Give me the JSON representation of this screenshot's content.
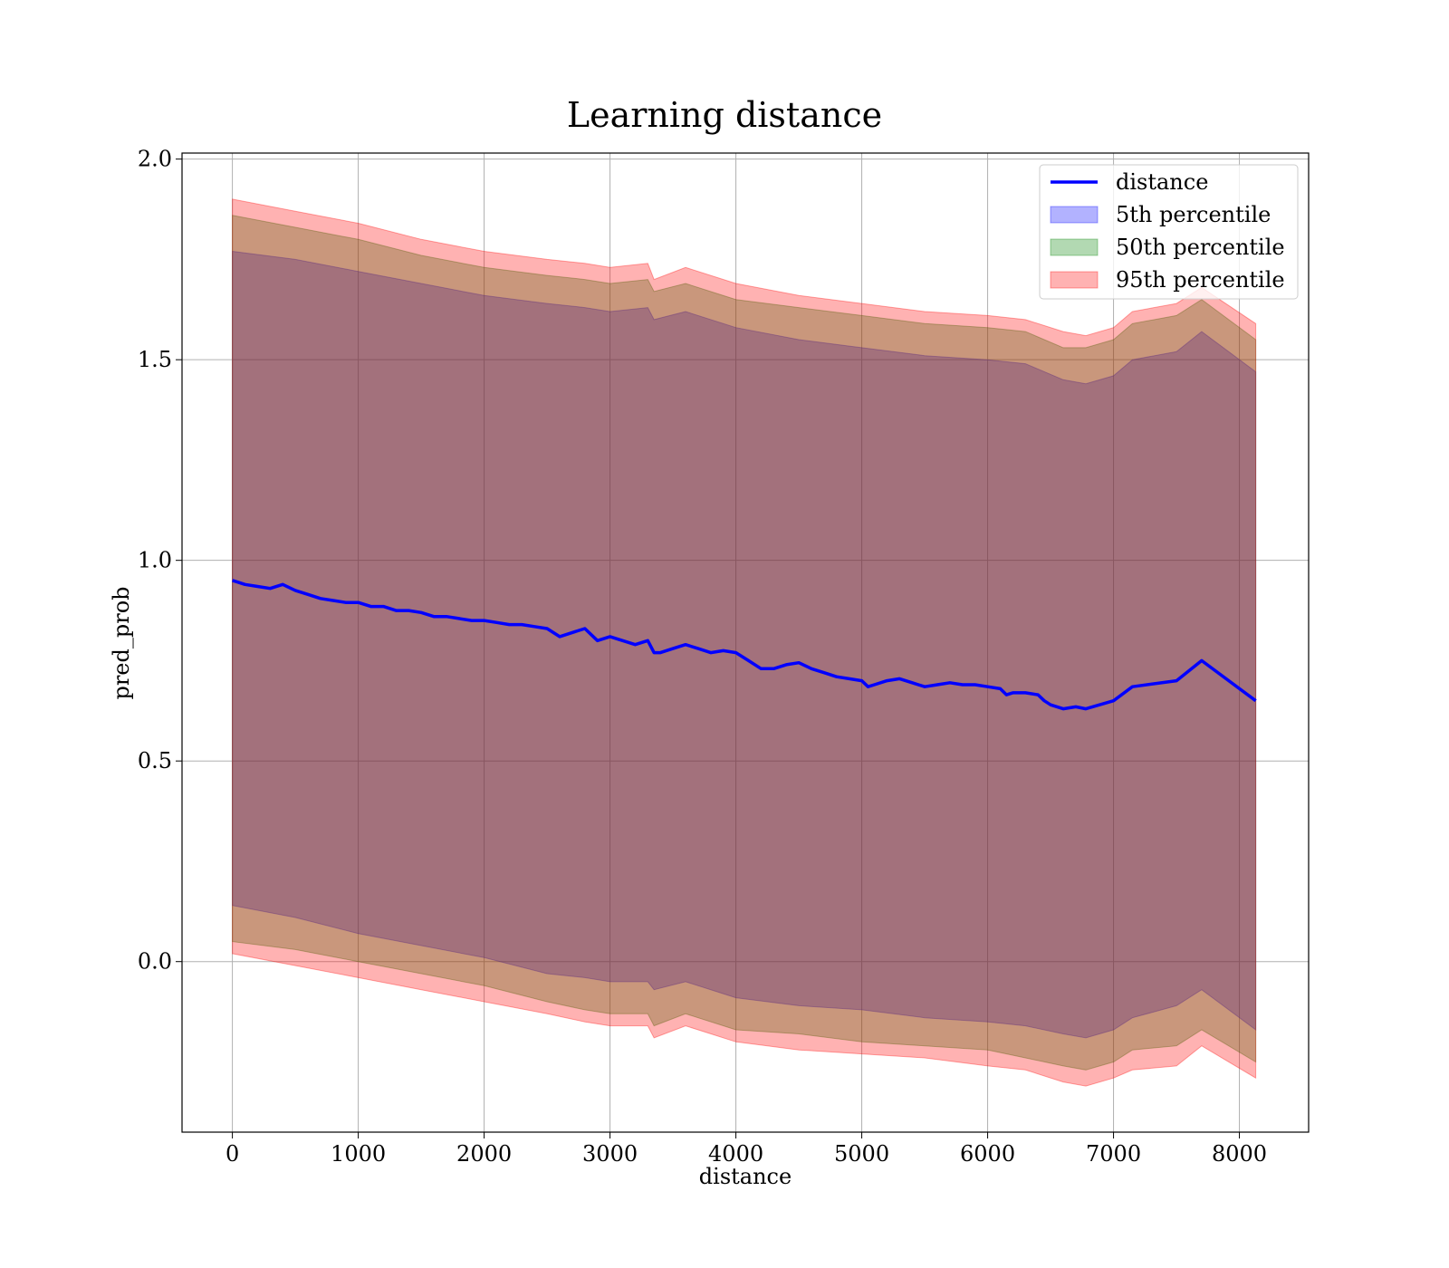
{
  "chart_data": {
    "type": "area",
    "title": "Learning distance",
    "xlabel": "distance",
    "ylabel": "pred_prob",
    "xlim": [
      -400,
      8550
    ],
    "ylim": [
      -0.425,
      2.015
    ],
    "x_ticks": [
      0,
      1000,
      2000,
      3000,
      4000,
      5000,
      6000,
      7000,
      8000
    ],
    "x_tick_labels": [
      "0",
      "1000",
      "2000",
      "3000",
      "4000",
      "5000",
      "6000",
      "7000",
      "8000"
    ],
    "y_ticks": [
      0.0,
      0.5,
      1.0,
      1.5,
      2.0
    ],
    "y_tick_labels": [
      "0.0",
      "0.5",
      "1.0",
      "1.5",
      "2.0"
    ],
    "grid": true,
    "legend_position": "top-right",
    "legend": [
      {
        "label": "distance",
        "kind": "line",
        "color": "#0000ff"
      },
      {
        "label": "5th percentile",
        "kind": "patch",
        "color": "#0000ff"
      },
      {
        "label": "50th percentile",
        "kind": "patch",
        "color": "#008000"
      },
      {
        "label": "95th percentile",
        "kind": "patch",
        "color": "#ff0000"
      }
    ],
    "series": [
      {
        "name": "distance",
        "color": "#0000ff",
        "x": [
          0,
          100,
          200,
          300,
          400,
          500,
          600,
          700,
          800,
          900,
          1000,
          1100,
          1200,
          1300,
          1400,
          1500,
          1600,
          1700,
          1800,
          1900,
          2000,
          2100,
          2200,
          2300,
          2400,
          2500,
          2600,
          2700,
          2800,
          2900,
          3000,
          3100,
          3200,
          3300,
          3350,
          3400,
          3500,
          3600,
          3700,
          3800,
          3900,
          4000,
          4100,
          4200,
          4300,
          4400,
          4500,
          4600,
          4700,
          4800,
          4900,
          5000,
          5050,
          5100,
          5200,
          5300,
          5400,
          5500,
          5600,
          5700,
          5800,
          5900,
          6000,
          6100,
          6150,
          6200,
          6300,
          6400,
          6450,
          6500,
          6600,
          6700,
          6780,
          7000,
          7150,
          7500,
          7700,
          8130
        ],
        "values": [
          0.95,
          0.94,
          0.935,
          0.93,
          0.94,
          0.925,
          0.915,
          0.905,
          0.9,
          0.895,
          0.895,
          0.885,
          0.885,
          0.875,
          0.875,
          0.87,
          0.86,
          0.86,
          0.855,
          0.85,
          0.85,
          0.845,
          0.84,
          0.84,
          0.835,
          0.83,
          0.81,
          0.82,
          0.83,
          0.8,
          0.81,
          0.8,
          0.79,
          0.8,
          0.77,
          0.77,
          0.78,
          0.79,
          0.78,
          0.77,
          0.775,
          0.77,
          0.75,
          0.73,
          0.73,
          0.74,
          0.745,
          0.73,
          0.72,
          0.71,
          0.705,
          0.7,
          0.685,
          0.69,
          0.7,
          0.705,
          0.695,
          0.685,
          0.69,
          0.695,
          0.69,
          0.69,
          0.685,
          0.68,
          0.665,
          0.67,
          0.67,
          0.665,
          0.65,
          0.64,
          0.63,
          0.635,
          0.63,
          0.65,
          0.685,
          0.7,
          0.75,
          0.65
        ]
      },
      {
        "name": "5th percentile",
        "color": "#0000ff",
        "alpha": 0.3,
        "x": [
          0,
          500,
          1000,
          1500,
          2000,
          2500,
          2800,
          3000,
          3300,
          3350,
          3600,
          4000,
          4500,
          5000,
          5500,
          6000,
          6300,
          6600,
          6780,
          7000,
          7150,
          7500,
          7700,
          8130
        ],
        "lower": [
          0.14,
          0.11,
          0.07,
          0.04,
          0.01,
          -0.03,
          -0.04,
          -0.05,
          -0.05,
          -0.07,
          -0.05,
          -0.09,
          -0.11,
          -0.12,
          -0.14,
          -0.15,
          -0.16,
          -0.18,
          -0.19,
          -0.17,
          -0.14,
          -0.11,
          -0.07,
          -0.17
        ],
        "upper": [
          1.77,
          1.75,
          1.72,
          1.69,
          1.66,
          1.64,
          1.63,
          1.62,
          1.63,
          1.6,
          1.62,
          1.58,
          1.55,
          1.53,
          1.51,
          1.5,
          1.49,
          1.45,
          1.44,
          1.46,
          1.5,
          1.52,
          1.57,
          1.47
        ]
      },
      {
        "name": "50th percentile",
        "color": "#008000",
        "alpha": 0.3,
        "x": [
          0,
          500,
          1000,
          1500,
          2000,
          2500,
          2800,
          3000,
          3300,
          3350,
          3600,
          4000,
          4500,
          5000,
          5500,
          6000,
          6300,
          6600,
          6780,
          7000,
          7150,
          7500,
          7700,
          8130
        ],
        "lower": [
          0.05,
          0.03,
          0.0,
          -0.03,
          -0.06,
          -0.1,
          -0.12,
          -0.13,
          -0.13,
          -0.16,
          -0.13,
          -0.17,
          -0.18,
          -0.2,
          -0.21,
          -0.22,
          -0.24,
          -0.26,
          -0.27,
          -0.25,
          -0.22,
          -0.21,
          -0.17,
          -0.25
        ],
        "upper": [
          1.86,
          1.83,
          1.8,
          1.76,
          1.73,
          1.71,
          1.7,
          1.69,
          1.7,
          1.67,
          1.69,
          1.65,
          1.63,
          1.61,
          1.59,
          1.58,
          1.57,
          1.53,
          1.53,
          1.55,
          1.59,
          1.61,
          1.65,
          1.55
        ]
      },
      {
        "name": "95th percentile",
        "color": "#ff0000",
        "alpha": 0.3,
        "x": [
          0,
          500,
          1000,
          1500,
          2000,
          2500,
          2800,
          3000,
          3300,
          3350,
          3600,
          4000,
          4500,
          5000,
          5500,
          6000,
          6300,
          6600,
          6780,
          7000,
          7150,
          7500,
          7700,
          8130
        ],
        "lower": [
          0.02,
          -0.01,
          -0.04,
          -0.07,
          -0.1,
          -0.13,
          -0.15,
          -0.16,
          -0.16,
          -0.19,
          -0.16,
          -0.2,
          -0.22,
          -0.23,
          -0.24,
          -0.26,
          -0.27,
          -0.3,
          -0.31,
          -0.29,
          -0.27,
          -0.26,
          -0.21,
          -0.29
        ],
        "upper": [
          1.9,
          1.87,
          1.84,
          1.8,
          1.77,
          1.75,
          1.74,
          1.73,
          1.74,
          1.7,
          1.73,
          1.69,
          1.66,
          1.64,
          1.62,
          1.61,
          1.6,
          1.57,
          1.56,
          1.58,
          1.62,
          1.64,
          1.68,
          1.59
        ]
      }
    ]
  }
}
